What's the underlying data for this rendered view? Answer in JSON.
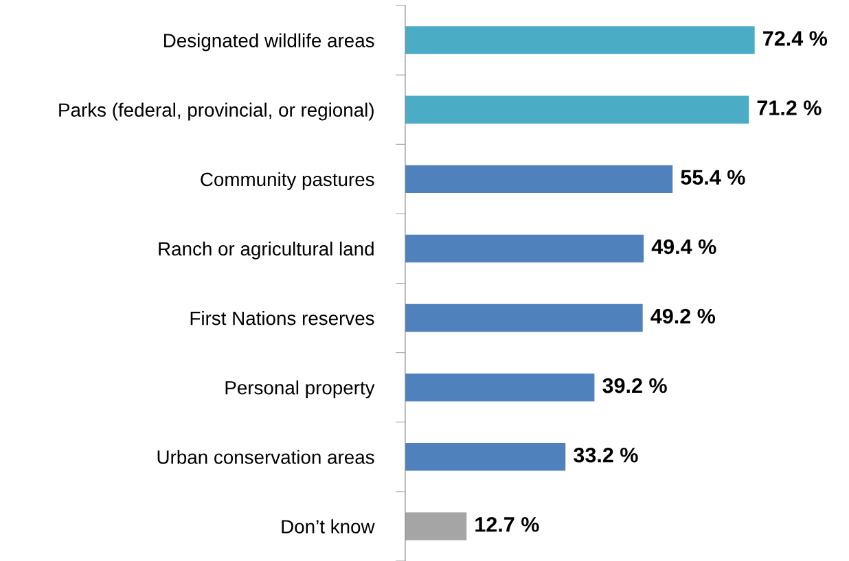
{
  "chart_data": {
    "type": "bar",
    "orientation": "horizontal",
    "categories": [
      "Designated wildlife areas",
      "Parks (federal, provincial, or regional)",
      "Community pastures",
      "Ranch or agricultural land",
      "First Nations reserves",
      "Personal property",
      "Urban conservation areas",
      "Don’t know"
    ],
    "values": [
      72.4,
      71.2,
      55.4,
      49.4,
      49.2,
      39.2,
      33.2,
      12.7
    ],
    "colors": [
      "#4bacc6",
      "#4bacc6",
      "#4f81bd",
      "#4f81bd",
      "#4f81bd",
      "#4f81bd",
      "#4f81bd",
      "#a5a5a5"
    ],
    "value_labels": [
      "72.4 %",
      "71.2 %",
      "55.4 %",
      "49.4 %",
      "49.2 %",
      "39.2 %",
      "33.2 %",
      "12.7 %"
    ],
    "grid": false,
    "legend": false
  }
}
